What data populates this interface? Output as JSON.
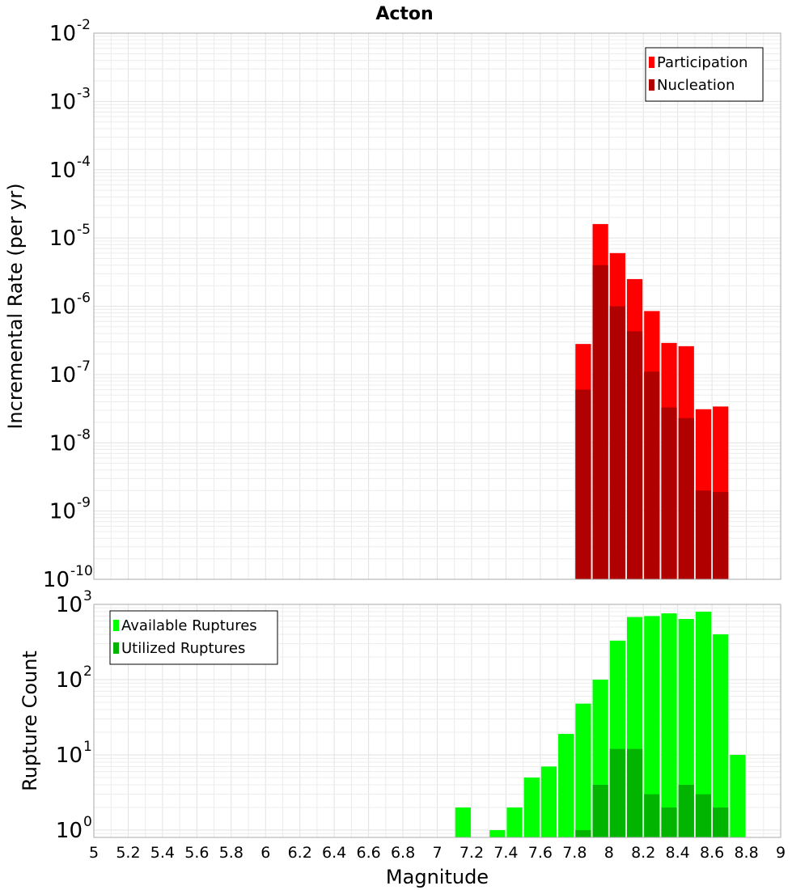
{
  "chart_data": [
    {
      "type": "bar",
      "title": "Acton",
      "ylabel": "Incremental Rate (per yr)",
      "xlabel": "",
      "x_range": [
        5,
        9
      ],
      "y_scale": "log",
      "y_range": [
        1e-10,
        0.01
      ],
      "y_ticks": [
        {
          "base": "10",
          "exp": "-10"
        },
        {
          "base": "10",
          "exp": "-9"
        },
        {
          "base": "10",
          "exp": "-8"
        },
        {
          "base": "10",
          "exp": "-7"
        },
        {
          "base": "10",
          "exp": "-6"
        },
        {
          "base": "10",
          "exp": "-5"
        },
        {
          "base": "10",
          "exp": "-4"
        },
        {
          "base": "10",
          "exp": "-3"
        },
        {
          "base": "10",
          "exp": "-2"
        }
      ],
      "grid": true,
      "legend_position": "top-right",
      "bin_width": 0.1,
      "series": [
        {
          "name": "Participation",
          "color": "#ff0000",
          "x": [
            7.85,
            7.95,
            8.05,
            8.15,
            8.25,
            8.35,
            8.45,
            8.55,
            8.65
          ],
          "values": [
            2.8e-07,
            1.6e-05,
            6e-06,
            2.5e-06,
            8.5e-07,
            2.9e-07,
            2.6e-07,
            3.1e-08,
            3.4e-08
          ]
        },
        {
          "name": "Nucleation",
          "color": "#b00000",
          "x": [
            7.85,
            7.95,
            8.05,
            8.15,
            8.25,
            8.35,
            8.45,
            8.55,
            8.65
          ],
          "values": [
            6e-08,
            4e-06,
            1e-06,
            4.3e-07,
            1.1e-07,
            3.3e-08,
            2.3e-08,
            2e-09,
            1.9e-09
          ]
        }
      ]
    },
    {
      "type": "bar",
      "title": "",
      "ylabel": "Rupture Count",
      "xlabel": "Magnitude",
      "x_range": [
        5,
        9
      ],
      "x_ticks": [
        "5",
        "5.2",
        "5.4",
        "5.6",
        "5.8",
        "6",
        "6.2",
        "6.4",
        "6.6",
        "6.8",
        "7",
        "7.2",
        "7.4",
        "7.6",
        "7.8",
        "8",
        "8.2",
        "8.4",
        "8.6",
        "8.8",
        "9"
      ],
      "y_scale": "log",
      "y_range": [
        0.8,
        1000
      ],
      "y_ticks": [
        {
          "base": "10",
          "exp": "0"
        },
        {
          "base": "10",
          "exp": "1"
        },
        {
          "base": "10",
          "exp": "2"
        },
        {
          "base": "10",
          "exp": "3"
        }
      ],
      "grid": true,
      "legend_position": "top-left",
      "bin_width": 0.1,
      "series": [
        {
          "name": "Available Ruptures",
          "color": "#00ff00",
          "x": [
            7.15,
            7.35,
            7.45,
            7.55,
            7.65,
            7.75,
            7.85,
            7.95,
            8.05,
            8.15,
            8.25,
            8.35,
            8.45,
            8.55,
            8.65,
            8.75
          ],
          "values": [
            2,
            1,
            2,
            5,
            7,
            19,
            48,
            100,
            330,
            680,
            700,
            760,
            640,
            800,
            400,
            10
          ]
        },
        {
          "name": "Utilized Ruptures",
          "color": "#00b400",
          "x": [
            7.85,
            7.95,
            8.05,
            8.15,
            8.25,
            8.35,
            8.45,
            8.55,
            8.65
          ],
          "values": [
            1,
            4,
            12,
            12,
            3,
            2,
            4,
            3,
            2
          ]
        }
      ]
    }
  ]
}
